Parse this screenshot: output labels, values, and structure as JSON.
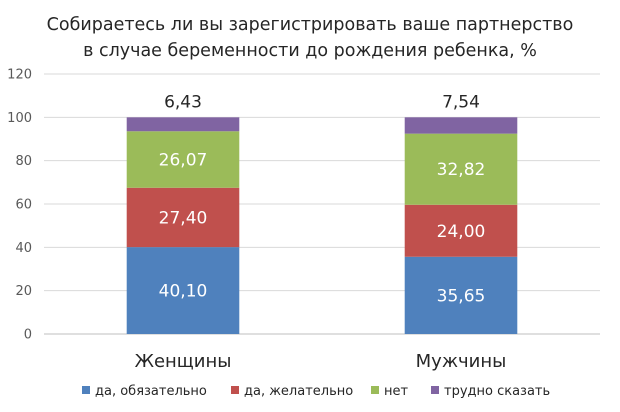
{
  "chart_data": {
    "type": "stacked-bar",
    "title_lines": [
      "Собираетесь ли вы зарегистрировать ваше партнерство",
      "в случае беременности  до рождения ребенка, %"
    ],
    "categories": [
      "Женщины",
      "Мужчины"
    ],
    "series": [
      {
        "name": "да, обязательно",
        "color": "#4f81bd",
        "values": [
          40.1,
          35.65
        ],
        "labels": [
          "40,10",
          "35,65"
        ]
      },
      {
        "name": "да, желательно",
        "color": "#c0504d",
        "values": [
          27.4,
          24.0
        ],
        "labels": [
          "27,40",
          "24,00"
        ]
      },
      {
        "name": "нет",
        "color": "#9bbb59",
        "values": [
          26.07,
          32.82
        ],
        "labels": [
          "26,07",
          "32,82"
        ]
      },
      {
        "name": "трудно сказать",
        "color": "#8064a2",
        "values": [
          6.43,
          7.54
        ],
        "labels": [
          "6,43",
          "7,54"
        ]
      }
    ],
    "ylim": [
      0,
      120
    ],
    "yticks": [
      0,
      20,
      40,
      60,
      80,
      100,
      120
    ],
    "grid": true,
    "legend_position": "bottom"
  }
}
